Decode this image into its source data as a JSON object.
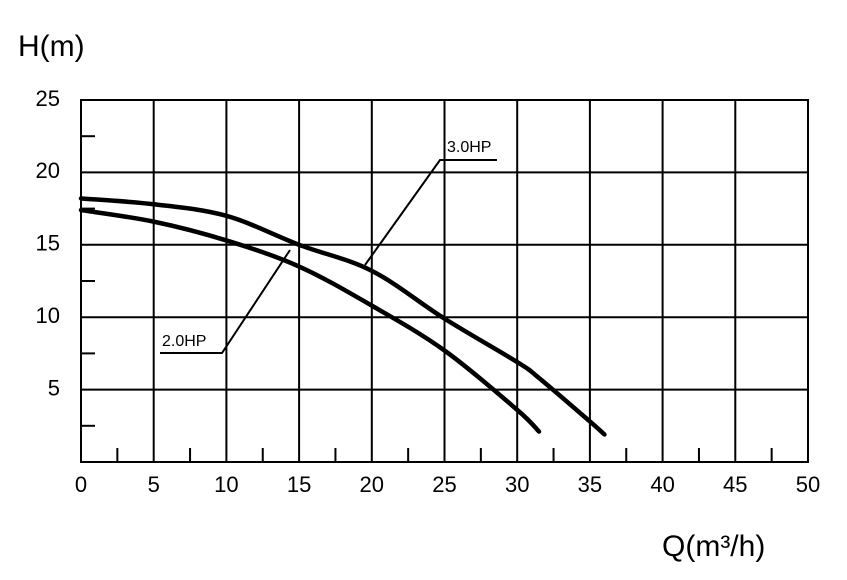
{
  "chart_data": {
    "type": "line",
    "y_label": "H(m)",
    "x_label": "Q(m³/h)",
    "x": [
      0,
      5,
      10,
      15,
      20,
      25,
      30,
      31.5,
      35,
      36
    ],
    "series": [
      {
        "name": "2.0HP",
        "color": "#000000",
        "values": [
          17.4,
          16.6,
          15.3,
          13.5,
          10.8,
          7.7,
          3.6,
          2.1,
          null,
          null
        ]
      },
      {
        "name": "3.0HP",
        "color": "#000000",
        "values": [
          18.2,
          17.8,
          17.0,
          15.0,
          13.2,
          9.9,
          6.9,
          5.8,
          2.8,
          1.9
        ]
      }
    ],
    "xlim": [
      0,
      50
    ],
    "ylim": [
      0,
      25
    ],
    "xticks": [
      0,
      5,
      10,
      15,
      20,
      25,
      30,
      35,
      40,
      45,
      50
    ],
    "yticks": [
      5,
      10,
      15,
      20,
      25
    ],
    "xminorticks": [
      2.5,
      7.5,
      12.5,
      17.5,
      22.5,
      27.5,
      32.5,
      37.5,
      42.5,
      47.5
    ],
    "yminorticks": [
      2.5,
      7.5,
      12.5,
      17.5,
      22.5
    ],
    "grid": true
  }
}
